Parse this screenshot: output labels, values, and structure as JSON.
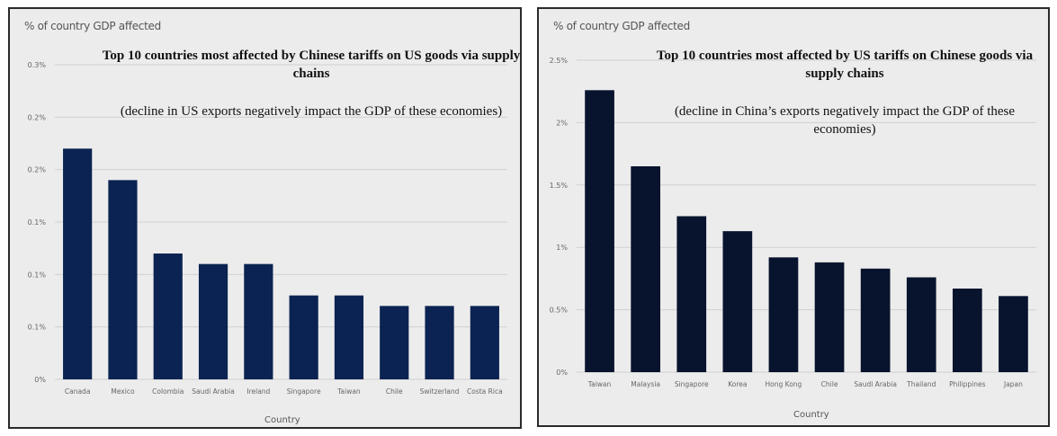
{
  "colors": {
    "panel_bg": "#ececec",
    "left_bar": "#0b2352",
    "right_bar": "#08142e",
    "grid": "#d0d0d0",
    "axis_text": "#666666"
  },
  "chart_data": [
    {
      "type": "bar",
      "y_axis_label": "% of country GDP affected",
      "title": "Top 10 countries most affected by Chinese tariffs on US goods via supply chains",
      "subtitle": "(decline in US exports negatively impact the GDP of these economies)",
      "xlabel": "Country",
      "yticks": [
        "0%",
        "0.1%",
        "0.1%",
        "0.1%",
        "0.2%",
        "0.2%",
        "0.3%"
      ],
      "ylim": [
        0,
        0.3
      ],
      "categories": [
        "Canada",
        "Mexico",
        "Colombia",
        "Saudi Arabia",
        "Ireland",
        "Singapore",
        "Taiwan",
        "Chile",
        "Switzerland",
        "Costa Rica"
      ],
      "values": [
        0.22,
        0.19,
        0.12,
        0.11,
        0.11,
        0.08,
        0.08,
        0.07,
        0.07,
        0.07
      ]
    },
    {
      "type": "bar",
      "y_axis_label": "% of country GDP affected",
      "title": "Top 10 countries most affected by US tariffs on Chinese goods via supply chains",
      "subtitle": "(decline in China’s exports negatively impact the GDP of these economies)",
      "xlabel": "Country",
      "yticks": [
        "0%",
        "0.5%",
        "1%",
        "1.5%",
        "2%",
        "2.5%"
      ],
      "ylim": [
        0,
        2.5
      ],
      "categories": [
        "Taiwan",
        "Malaysia",
        "Singapore",
        "Korea",
        "Hong Kong",
        "Chile",
        "Saudi Arabia",
        "Thailand",
        "Philippines",
        "Japan"
      ],
      "values": [
        2.26,
        1.65,
        1.25,
        1.13,
        0.92,
        0.88,
        0.83,
        0.76,
        0.67,
        0.61
      ]
    }
  ]
}
